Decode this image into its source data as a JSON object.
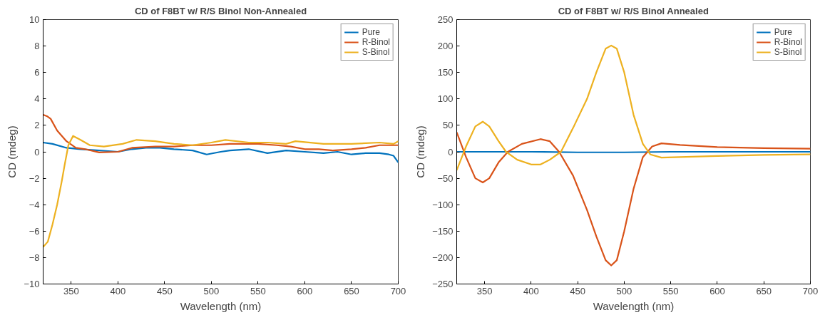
{
  "chart_data": [
    {
      "type": "line",
      "title": "CD of F8BT w/ R/S Binol Non-Annealed",
      "xlabel": "Wavelength (nm)",
      "ylabel": "CD (mdeg)",
      "xlim": [
        320,
        700
      ],
      "xticks": [
        350,
        400,
        450,
        500,
        550,
        600,
        650,
        700
      ],
      "ylim": [
        -10,
        10
      ],
      "yticks": [
        -10,
        -8,
        -6,
        -4,
        -2,
        0,
        2,
        4,
        6,
        8,
        10
      ],
      "legend": "top right",
      "grid": false,
      "series": [
        {
          "name": "Pure",
          "color": "#0072bd",
          "x": [
            320,
            330,
            345,
            360,
            380,
            400,
            415,
            430,
            445,
            460,
            480,
            495,
            510,
            520,
            540,
            560,
            580,
            600,
            620,
            635,
            650,
            665,
            680,
            690,
            695,
            700
          ],
          "values": [
            0.7,
            0.6,
            0.3,
            0.2,
            0.1,
            0.0,
            0.2,
            0.3,
            0.3,
            0.2,
            0.1,
            -0.2,
            0.0,
            0.1,
            0.2,
            -0.1,
            0.1,
            0.0,
            -0.1,
            0.0,
            -0.2,
            -0.1,
            -0.1,
            -0.2,
            -0.3,
            -0.8
          ]
        },
        {
          "name": "R-Binol",
          "color": "#d95319",
          "x": [
            320,
            324,
            328,
            335,
            345,
            355,
            365,
            380,
            400,
            415,
            440,
            460,
            480,
            500,
            520,
            550,
            570,
            585,
            600,
            615,
            630,
            650,
            665,
            680,
            690,
            700
          ],
          "values": [
            2.8,
            2.7,
            2.5,
            1.6,
            0.8,
            0.3,
            0.2,
            -0.05,
            0.0,
            0.3,
            0.4,
            0.4,
            0.5,
            0.5,
            0.6,
            0.6,
            0.5,
            0.4,
            0.2,
            0.2,
            0.1,
            0.2,
            0.3,
            0.5,
            0.5,
            0.5
          ]
        },
        {
          "name": "S-Binol",
          "color": "#edb120",
          "x": [
            320,
            325,
            330,
            335,
            340,
            343,
            347,
            352,
            360,
            370,
            385,
            405,
            420,
            440,
            460,
            480,
            500,
            515,
            540,
            560,
            580,
            590,
            620,
            650,
            680,
            695,
            700
          ],
          "values": [
            -7.2,
            -6.8,
            -5.5,
            -4.0,
            -2.2,
            -1.0,
            0.5,
            1.2,
            0.9,
            0.5,
            0.4,
            0.6,
            0.9,
            0.8,
            0.6,
            0.5,
            0.7,
            0.9,
            0.7,
            0.7,
            0.6,
            0.8,
            0.6,
            0.6,
            0.7,
            0.6,
            0.8
          ]
        }
      ]
    },
    {
      "type": "line",
      "title": "CD of F8BT w/ R/S Binol Annealed",
      "xlabel": "Wavelength (nm)",
      "ylabel": "CD (mdeg)",
      "xlim": [
        320,
        700
      ],
      "xticks": [
        350,
        400,
        450,
        500,
        550,
        600,
        650,
        700
      ],
      "ylim": [
        -250,
        250
      ],
      "yticks": [
        -250,
        -200,
        -150,
        -100,
        -50,
        0,
        50,
        100,
        150,
        200,
        250
      ],
      "legend": "top right",
      "grid": false,
      "series": [
        {
          "name": "Pure",
          "color": "#0072bd",
          "x": [
            320,
            400,
            450,
            500,
            550,
            600,
            700
          ],
          "values": [
            0,
            0,
            -1,
            -1,
            0,
            0,
            0
          ]
        },
        {
          "name": "R-Binol",
          "color": "#d95319",
          "x": [
            320,
            330,
            340,
            348,
            355,
            365,
            375,
            390,
            410,
            420,
            430,
            445,
            460,
            470,
            480,
            486,
            492,
            500,
            510,
            520,
            530,
            540,
            560,
            600,
            650,
            700
          ],
          "values": [
            37,
            -10,
            -50,
            -58,
            -50,
            -20,
            0,
            15,
            24,
            20,
            0,
            -45,
            -110,
            -160,
            -205,
            -215,
            -205,
            -150,
            -70,
            -10,
            10,
            16,
            13,
            9,
            7,
            6
          ]
        },
        {
          "name": "S-Binol",
          "color": "#edb120",
          "x": [
            320,
            330,
            340,
            348,
            355,
            365,
            373,
            385,
            400,
            410,
            420,
            432,
            445,
            460,
            470,
            480,
            486,
            492,
            500,
            510,
            520,
            528,
            540,
            560,
            600,
            650,
            700
          ],
          "values": [
            -35,
            10,
            48,
            57,
            48,
            20,
            0,
            -15,
            -24,
            -24,
            -15,
            0,
            45,
            100,
            150,
            195,
            201,
            195,
            150,
            70,
            15,
            -5,
            -11,
            -10,
            -8,
            -6,
            -5
          ]
        }
      ]
    }
  ]
}
